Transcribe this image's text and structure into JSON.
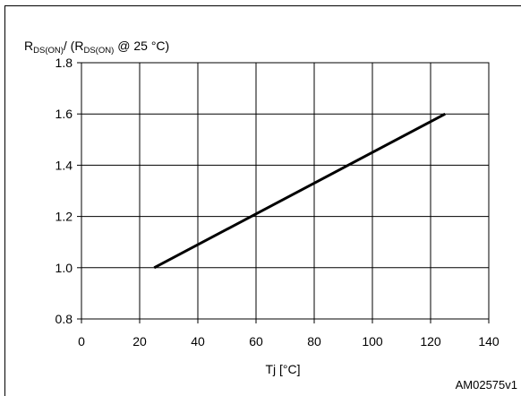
{
  "chart_data": {
    "type": "line",
    "ylabel_parts": {
      "r1": "R",
      "sub1": "DS(ON)",
      "mid": "/ (R",
      "sub2": "DS(ON)",
      "end": "@ 25 °C)"
    },
    "xlabel": "Tj [°C]",
    "xlim": [
      0,
      140
    ],
    "ylim": [
      0.8,
      1.8
    ],
    "xticks": [
      "0",
      "20",
      "40",
      "60",
      "80",
      "100",
      "120",
      "140"
    ],
    "yticks": [
      "0.8",
      "1.0",
      "1.2",
      "1.4",
      "1.6",
      "1.8"
    ],
    "grid": true,
    "series": [
      {
        "x": [
          25,
          125
        ],
        "y": [
          1.0,
          1.6
        ]
      }
    ]
  },
  "figure_code": "AM02575v1"
}
